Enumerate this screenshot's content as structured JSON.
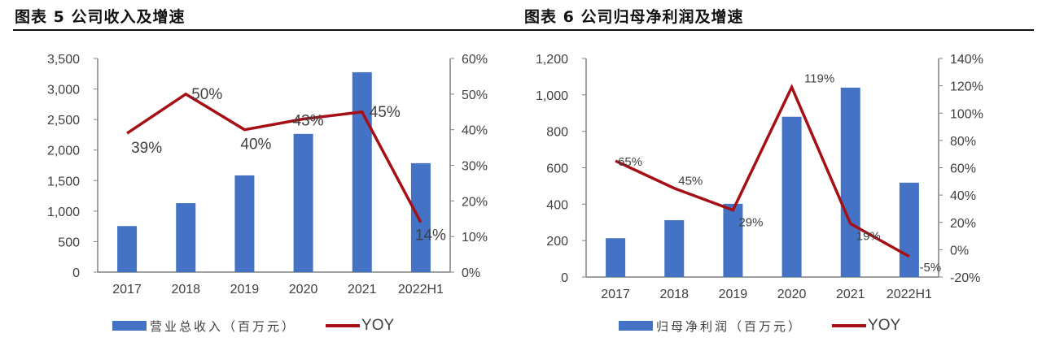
{
  "colors": {
    "bar": "#4472C4",
    "line": "#A50F15",
    "axis": "#808080",
    "text": "#404040"
  },
  "panels": [
    {
      "title": "图表 5 公司收入及增速",
      "legend": {
        "bar_label": "营业总收入（百万元）",
        "line_label": "YOY"
      }
    },
    {
      "title": "图表 6 公司归母净利润及增速",
      "legend": {
        "bar_label": "归母净利润（百万元）",
        "line_label": "YOY"
      }
    }
  ],
  "chart_data": [
    {
      "type": "bar+line",
      "title": "图表 5 公司收入及增速",
      "categories": [
        "2017",
        "2018",
        "2019",
        "2020",
        "2021",
        "2022H1"
      ],
      "series": [
        {
          "name": "营业总收入（百万元）",
          "type": "bar",
          "axis": "left",
          "values": [
            755,
            1130,
            1585,
            2265,
            3275,
            1785
          ]
        },
        {
          "name": "YOY",
          "type": "line",
          "axis": "right",
          "values": [
            39,
            50,
            40,
            43,
            45,
            14
          ],
          "labels": [
            "39%",
            "50%",
            "40%",
            "43%",
            "45%",
            "14%"
          ]
        }
      ],
      "left_axis": {
        "ylim": [
          0,
          3500
        ],
        "ticks": [
          "0",
          "500",
          "1,000",
          "1,500",
          "2,000",
          "2,500",
          "3,000",
          "3,500"
        ]
      },
      "right_axis": {
        "ylim": [
          0,
          60
        ],
        "ticks": [
          "0%",
          "10%",
          "20%",
          "30%",
          "40%",
          "50%",
          "60%"
        ]
      },
      "grid": false,
      "legend_position": "bottom"
    },
    {
      "type": "bar+line",
      "title": "图表 6 公司归母净利润及增速",
      "categories": [
        "2017",
        "2018",
        "2019",
        "2020",
        "2021",
        "2022H1"
      ],
      "series": [
        {
          "name": "归母净利润（百万元）",
          "type": "bar",
          "axis": "left",
          "values": [
            213,
            312,
            402,
            880,
            1040,
            518
          ]
        },
        {
          "name": "YOY",
          "type": "line",
          "axis": "right",
          "values": [
            65,
            45,
            29,
            119,
            19,
            -5
          ],
          "labels": [
            "65%",
            "45%",
            "29%",
            "119%",
            "19%",
            "-5%"
          ]
        }
      ],
      "left_axis": {
        "ylim": [
          0,
          1200
        ],
        "ticks": [
          "0",
          "200",
          "400",
          "600",
          "800",
          "1,000",
          "1,200"
        ]
      },
      "right_axis": {
        "ylim": [
          -20,
          140
        ],
        "ticks": [
          "-20%",
          "0%",
          "20%",
          "40%",
          "60%",
          "80%",
          "100%",
          "120%",
          "140%"
        ]
      },
      "grid": false,
      "legend_position": "bottom"
    }
  ]
}
